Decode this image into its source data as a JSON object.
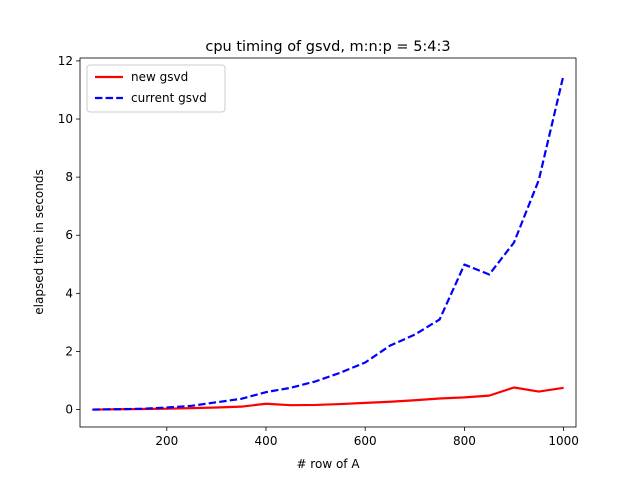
{
  "chart_data": {
    "type": "line",
    "title": "cpu timing of gsvd, m:n:p = 5:4:3",
    "xlabel": "# row of A",
    "ylabel": "elapsed time in seconds",
    "xlim": [
      25,
      1025
    ],
    "ylim": [
      -0.6,
      12.1
    ],
    "xticks": [
      200,
      400,
      600,
      800,
      1000
    ],
    "yticks": [
      0,
      2,
      4,
      6,
      8,
      10,
      12
    ],
    "grid": false,
    "legend_position": "upper-left",
    "x": [
      50,
      100,
      150,
      200,
      250,
      300,
      350,
      400,
      450,
      500,
      550,
      600,
      650,
      700,
      750,
      800,
      850,
      900,
      950,
      1000
    ],
    "series": [
      {
        "name": "new gsvd",
        "color": "#ff0000",
        "style": "solid",
        "values": [
          0.0,
          0.01,
          0.02,
          0.03,
          0.05,
          0.07,
          0.1,
          0.2,
          0.15,
          0.16,
          0.19,
          0.23,
          0.27,
          0.32,
          0.38,
          0.42,
          0.48,
          0.76,
          0.62,
          0.75
        ]
      },
      {
        "name": "current gsvd",
        "color": "#0000ff",
        "style": "dashed",
        "values": [
          0.0,
          0.01,
          0.03,
          0.07,
          0.13,
          0.25,
          0.37,
          0.6,
          0.75,
          0.97,
          1.27,
          1.62,
          2.2,
          2.58,
          3.1,
          4.99,
          4.65,
          5.75,
          7.9,
          11.52
        ]
      }
    ]
  }
}
